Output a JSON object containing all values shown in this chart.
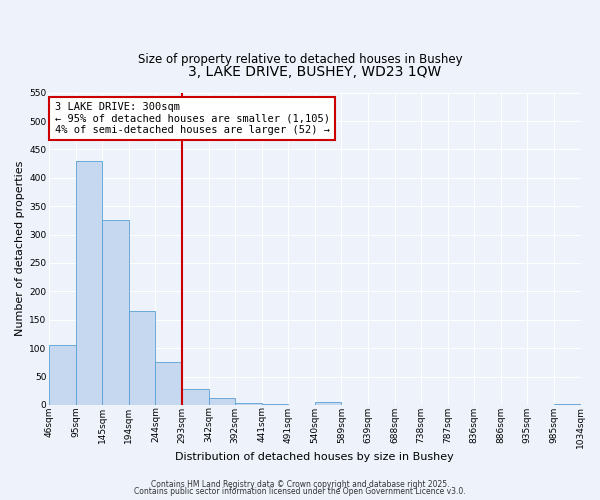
{
  "title": "3, LAKE DRIVE, BUSHEY, WD23 1QW",
  "subtitle": "Size of property relative to detached houses in Bushey",
  "xlabel": "Distribution of detached houses by size in Bushey",
  "ylabel": "Number of detached properties",
  "bar_values": [
    105,
    430,
    325,
    165,
    75,
    28,
    12,
    3,
    1,
    0,
    5,
    0,
    0,
    0,
    0,
    0,
    0,
    0,
    0,
    2
  ],
  "bin_labels": [
    "46sqm",
    "95sqm",
    "145sqm",
    "194sqm",
    "244sqm",
    "293sqm",
    "342sqm",
    "392sqm",
    "441sqm",
    "491sqm",
    "540sqm",
    "589sqm",
    "639sqm",
    "688sqm",
    "738sqm",
    "787sqm",
    "836sqm",
    "886sqm",
    "935sqm",
    "985sqm",
    "1034sqm"
  ],
  "bar_color": "#c5d8f0",
  "bar_edge_color": "#5a9fd4",
  "vline_color": "#cc0000",
  "vline_position": 5,
  "annotation_text": "3 LAKE DRIVE: 300sqm\n← 95% of detached houses are smaller (1,105)\n4% of semi-detached houses are larger (52) →",
  "annotation_box_color": "#ffffff",
  "annotation_box_edge": "#cc0000",
  "ylim": [
    0,
    550
  ],
  "yticks": [
    0,
    50,
    100,
    150,
    200,
    250,
    300,
    350,
    400,
    450,
    500,
    550
  ],
  "plot_bg": "#edf2fb",
  "fig_bg": "#edf2fb",
  "grid_color": "#ffffff",
  "footer1": "Contains HM Land Registry data © Crown copyright and database right 2025.",
  "footer2": "Contains public sector information licensed under the Open Government Licence v3.0.",
  "title_fontsize": 10,
  "subtitle_fontsize": 8.5,
  "axis_label_fontsize": 8,
  "tick_fontsize": 6.5,
  "annotation_fontsize": 7.5,
  "footer_fontsize": 5.5
}
